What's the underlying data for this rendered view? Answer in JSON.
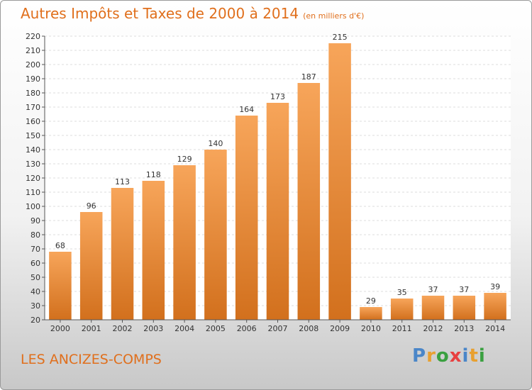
{
  "header": {
    "title": "Autres Impôts et Taxes de 2000 à 2014",
    "unit": "(en milliers d'€)"
  },
  "footer": {
    "commune": "LES ANCIZES-COMPS",
    "brand": "Proxiti",
    "brand_colors": [
      "#4a86c8",
      "#e8a030",
      "#3aa040",
      "#e84040",
      "#4a86c8",
      "#e8a030",
      "#3aa040"
    ]
  },
  "chart_data": {
    "type": "bar",
    "title": "Autres Impôts et Taxes de 2000 à 2014",
    "subtitle": "(en milliers d'€)",
    "xlabel": "",
    "ylabel": "",
    "categories": [
      "2000",
      "2001",
      "2002",
      "2003",
      "2004",
      "2005",
      "2006",
      "2007",
      "2008",
      "2009",
      "2010",
      "2011",
      "2012",
      "2013",
      "2014"
    ],
    "values": [
      68,
      96,
      113,
      118,
      129,
      140,
      164,
      173,
      187,
      215,
      29,
      35,
      37,
      37,
      39
    ],
    "ylim": [
      20,
      220
    ],
    "ytick_step": 10,
    "grid": true,
    "legend": "none",
    "bar_color_top": "#f7a55a",
    "bar_color_bottom": "#d2701d"
  }
}
